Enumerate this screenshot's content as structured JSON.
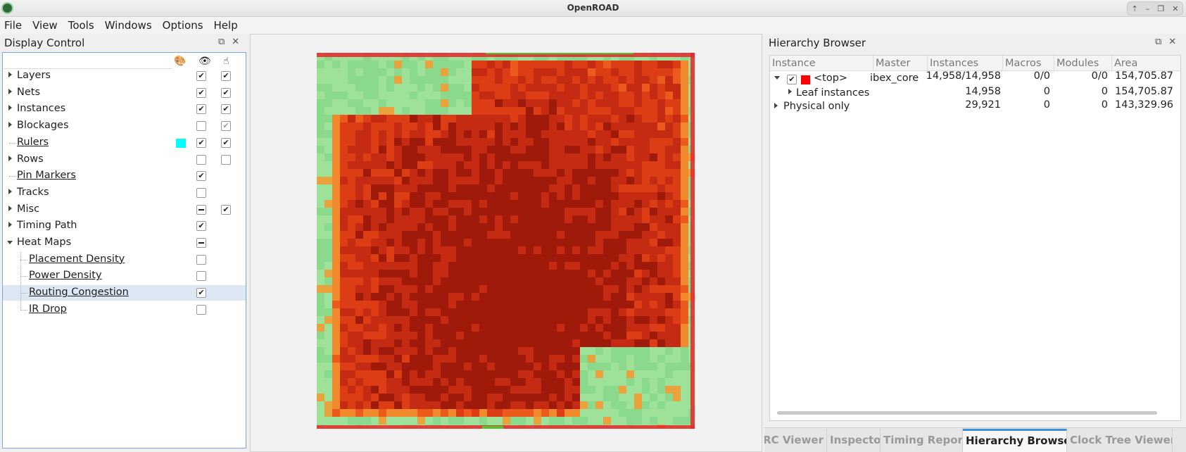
{
  "window": {
    "title": "OpenROAD"
  },
  "menu": [
    "File",
    "View",
    "Tools",
    "Windows",
    "Options",
    "Help"
  ],
  "display_control": {
    "title": "Display Control",
    "items": [
      {
        "label": "Layers",
        "expandable": true,
        "visible": "on",
        "selectable": "on"
      },
      {
        "label": "Nets",
        "expandable": true,
        "visible": "on",
        "selectable": "on"
      },
      {
        "label": "Instances",
        "expandable": true,
        "visible": "on",
        "selectable": "on"
      },
      {
        "label": "Blockages",
        "expandable": true,
        "visible": "off",
        "selectable": "grayon"
      },
      {
        "label": "Rulers",
        "expandable": false,
        "swatch": "#00ffff",
        "visible": "on",
        "selectable": "on"
      },
      {
        "label": "Rows",
        "expandable": true,
        "visible": "off",
        "selectable": "off"
      },
      {
        "label": "Pin Markers",
        "expandable": false,
        "visible": "on",
        "selectable": "none"
      },
      {
        "label": "Tracks",
        "expandable": true,
        "visible": "off",
        "selectable": "none"
      },
      {
        "label": "Misc",
        "expandable": true,
        "visible": "partial",
        "selectable": "on"
      },
      {
        "label": "Timing Path",
        "expandable": true,
        "visible": "on",
        "selectable": "none"
      },
      {
        "label": "Heat Maps",
        "expandable": true,
        "expanded": true,
        "visible": "partial",
        "selectable": "none"
      },
      {
        "label": "Placement Density",
        "child": true,
        "visible": "off",
        "selectable": "none"
      },
      {
        "label": "Power Density",
        "child": true,
        "visible": "off",
        "selectable": "none"
      },
      {
        "label": "Routing Congestion",
        "child": true,
        "selected": true,
        "visible": "on",
        "selectable": "none"
      },
      {
        "label": "IR Drop",
        "child": true,
        "visible": "off",
        "selectable": "none"
      }
    ]
  },
  "hierarchy_browser": {
    "title": "Hierarchy Browser",
    "columns": [
      "Instance",
      "Master",
      "Instances",
      "Macros",
      "Modules",
      "Area"
    ],
    "rows": [
      {
        "instance": "<top>",
        "master": "ibex_core",
        "instances": "14,958/14,958",
        "macros": "0/0",
        "modules": "0/0",
        "area": "154,705.87"
      },
      {
        "instance": "Leaf instances",
        "master": "",
        "instances": "14,958",
        "macros": "0",
        "modules": "0",
        "area": "154,705.87"
      },
      {
        "instance": "Physical only",
        "master": "",
        "instances": "29,921",
        "macros": "0",
        "modules": "0",
        "area": "143,329.96"
      }
    ],
    "top_color": "#ff0000"
  },
  "tabs": [
    "DRC Viewer",
    "Inspector",
    "Timing Report",
    "Hierarchy Browser",
    "Clock Tree Viewer"
  ],
  "active_tab": "Hierarchy Browser"
}
